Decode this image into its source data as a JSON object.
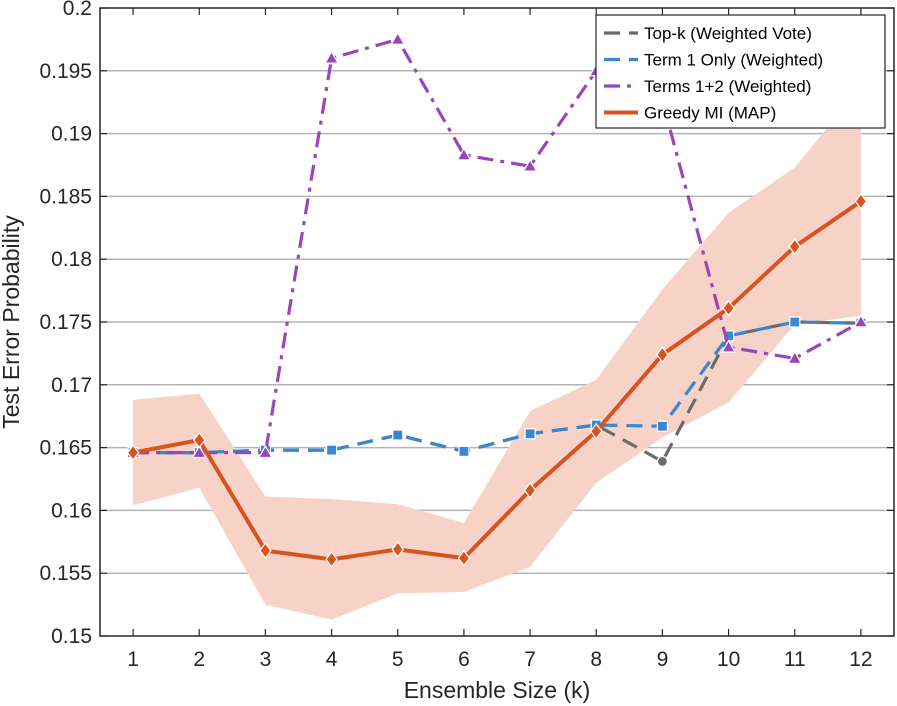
{
  "chart_data": {
    "type": "line",
    "title": "",
    "xlabel": "Ensemble Size (k)",
    "ylabel": "Test Error Probability",
    "xlim": [
      0.5,
      12.5
    ],
    "ylim": [
      0.15,
      0.2
    ],
    "x": [
      1,
      2,
      3,
      4,
      5,
      6,
      7,
      8,
      9,
      10,
      11,
      12
    ],
    "xticks": [
      "1",
      "2",
      "3",
      "4",
      "5",
      "6",
      "7",
      "8",
      "9",
      "10",
      "11",
      "12"
    ],
    "yticks": [
      "0.15",
      "0.155",
      "0.16",
      "0.165",
      "0.17",
      "0.175",
      "0.18",
      "0.185",
      "0.19",
      "0.195",
      "0.2"
    ],
    "ytick_values": [
      0.15,
      0.155,
      0.16,
      0.165,
      0.17,
      0.175,
      0.18,
      0.185,
      0.19,
      0.195,
      0.2
    ],
    "grid": "horizontal",
    "legend_position": "top-right",
    "series": [
      {
        "name": "Top-k (Weighted Vote)",
        "color": "#6b6b6b",
        "dash": "dashed",
        "marker": "circle",
        "values": [
          0.1646,
          0.1646,
          0.1648,
          0.1648,
          0.166,
          0.1647,
          0.1661,
          0.1668,
          0.1639,
          0.1739,
          0.175,
          0.1749
        ]
      },
      {
        "name": "Term 1 Only (Weighted)",
        "color": "#3a87cf",
        "dash": "dashed",
        "marker": "square",
        "values": [
          0.1646,
          0.1646,
          0.1648,
          0.1648,
          0.166,
          0.1647,
          0.1661,
          0.1668,
          0.1667,
          0.1739,
          0.175,
          0.1749
        ]
      },
      {
        "name": "Terms 1+2 (Weighted)",
        "color": "#9b46b8",
        "dash": "dashdot",
        "marker": "triangle",
        "values": [
          0.1646,
          0.1646,
          0.1646,
          0.196,
          0.1975,
          0.1883,
          0.1874,
          0.195,
          0.1926,
          0.173,
          0.1721,
          0.175
        ]
      },
      {
        "name": "Greedy MI (MAP)",
        "color": "#d8531f",
        "dash": "solid",
        "marker": "diamond",
        "values": [
          0.1646,
          0.1656,
          0.1568,
          0.1561,
          0.1569,
          0.1562,
          0.1616,
          0.1663,
          0.1724,
          0.1761,
          0.181,
          0.1846
        ],
        "band_color": "#f6d3c6",
        "band_lower": [
          0.1604,
          0.1618,
          0.1525,
          0.1513,
          0.1534,
          0.1535,
          0.1555,
          0.1622,
          0.1658,
          0.1686,
          0.1748,
          0.1755
        ],
        "band_upper": [
          0.1688,
          0.1693,
          0.1611,
          0.1609,
          0.1605,
          0.159,
          0.1679,
          0.1704,
          0.1776,
          0.1837,
          0.1873,
          0.1937
        ]
      }
    ]
  }
}
